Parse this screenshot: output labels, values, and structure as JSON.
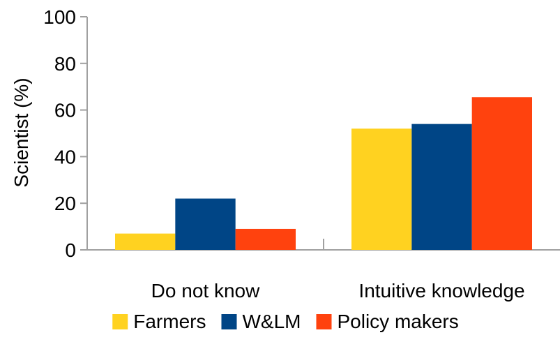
{
  "chart_data": {
    "type": "bar",
    "categories": [
      "Do not know",
      "Intuitive knowledge"
    ],
    "series": [
      {
        "name": "Farmers",
        "values": [
          7,
          52
        ],
        "color": "#FFD220"
      },
      {
        "name": "W&LM",
        "values": [
          22,
          54
        ],
        "color": "#004586"
      },
      {
        "name": "Policy makers",
        "values": [
          9,
          65.5
        ],
        "color": "#FF420E"
      }
    ],
    "ylabel": "Scientist (%)",
    "xlabel": "",
    "ylim": [
      0,
      100
    ],
    "yticks": [
      0,
      20,
      40,
      60,
      80,
      100
    ],
    "grid": false,
    "legend_position": "bottom"
  }
}
